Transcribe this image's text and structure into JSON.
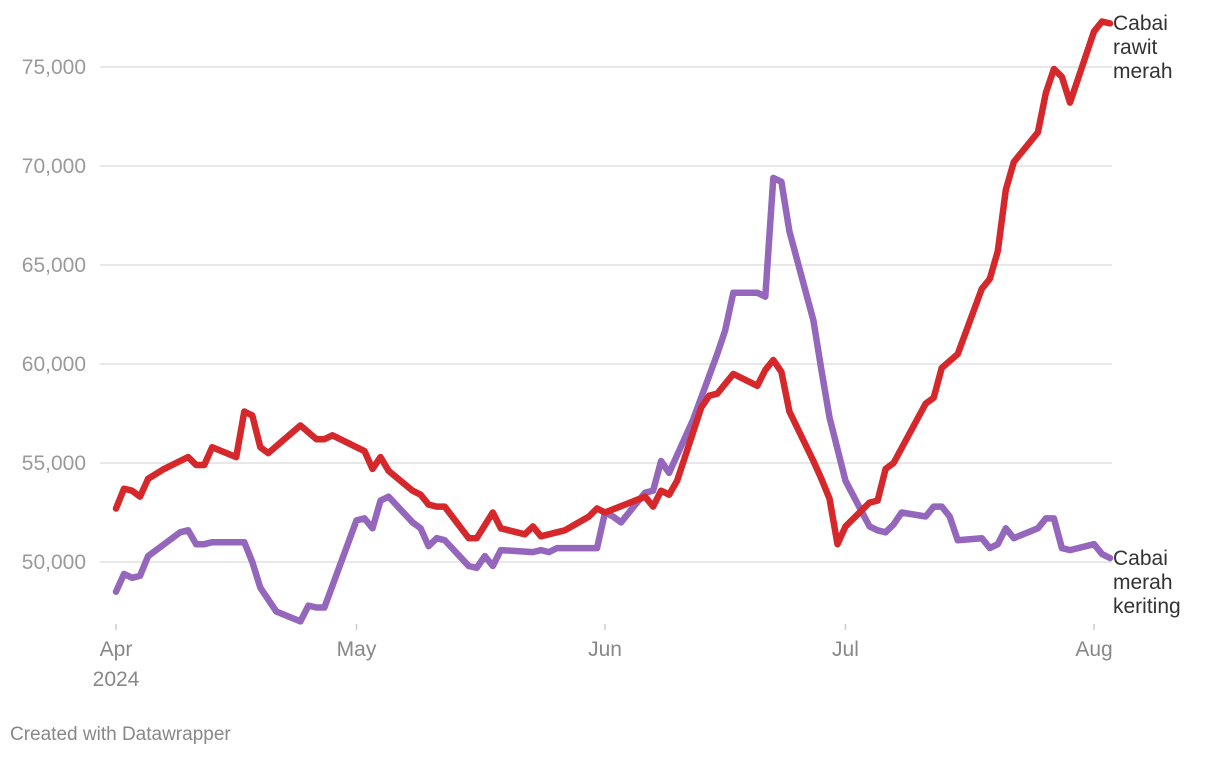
{
  "credit": "Created with Datawrapper",
  "chart_data": {
    "type": "line",
    "x_start": "2024-04-01",
    "x_end": "2024-08-01",
    "x_ticks": [
      {
        "label": "Apr",
        "sublabel": "2024",
        "date": "2024-04-01"
      },
      {
        "label": "May",
        "sublabel": "",
        "date": "2024-05-01"
      },
      {
        "label": "Jun",
        "sublabel": "",
        "date": "2024-06-01"
      },
      {
        "label": "Jul",
        "sublabel": "",
        "date": "2024-07-01"
      },
      {
        "label": "Aug",
        "sublabel": "",
        "date": "2024-08-01"
      }
    ],
    "y_ticks": [
      {
        "value": 50000,
        "label": "50,000"
      },
      {
        "value": 55000,
        "label": "55,000"
      },
      {
        "value": 60000,
        "label": "60,000"
      },
      {
        "value": 65000,
        "label": "65,000"
      },
      {
        "value": 70000,
        "label": "70,000"
      },
      {
        "value": 75000,
        "label": "75,000"
      }
    ],
    "ylim": [
      46500,
      77500
    ],
    "grid": true,
    "series": [
      {
        "name": "Cabai rawit merah",
        "label_lines": [
          "Cabai",
          "rawit",
          "merah"
        ],
        "color": "#d6272a",
        "points": [
          [
            "2024-04-01",
            52700
          ],
          [
            "2024-04-02",
            53700
          ],
          [
            "2024-04-03",
            53600
          ],
          [
            "2024-04-04",
            53300
          ],
          [
            "2024-04-05",
            54200
          ],
          [
            "2024-04-07",
            54700
          ],
          [
            "2024-04-09",
            55100
          ],
          [
            "2024-04-10",
            55300
          ],
          [
            "2024-04-11",
            54900
          ],
          [
            "2024-04-12",
            54900
          ],
          [
            "2024-04-13",
            55800
          ],
          [
            "2024-04-16",
            55300
          ],
          [
            "2024-04-17",
            57600
          ],
          [
            "2024-04-18",
            57400
          ],
          [
            "2024-04-19",
            55800
          ],
          [
            "2024-04-20",
            55500
          ],
          [
            "2024-04-24",
            56900
          ],
          [
            "2024-04-26",
            56200
          ],
          [
            "2024-04-27",
            56200
          ],
          [
            "2024-04-28",
            56400
          ],
          [
            "2024-05-01",
            55800
          ],
          [
            "2024-05-02",
            55600
          ],
          [
            "2024-05-03",
            54700
          ],
          [
            "2024-05-04",
            55300
          ],
          [
            "2024-05-05",
            54600
          ],
          [
            "2024-05-08",
            53600
          ],
          [
            "2024-05-09",
            53400
          ],
          [
            "2024-05-10",
            52900
          ],
          [
            "2024-05-11",
            52800
          ],
          [
            "2024-05-12",
            52800
          ],
          [
            "2024-05-15",
            51200
          ],
          [
            "2024-05-16",
            51200
          ],
          [
            "2024-05-18",
            52500
          ],
          [
            "2024-05-19",
            51700
          ],
          [
            "2024-05-22",
            51400
          ],
          [
            "2024-05-23",
            51800
          ],
          [
            "2024-05-24",
            51300
          ],
          [
            "2024-05-27",
            51600
          ],
          [
            "2024-05-30",
            52300
          ],
          [
            "2024-05-31",
            52700
          ],
          [
            "2024-06-01",
            52500
          ],
          [
            "2024-06-06",
            53300
          ],
          [
            "2024-06-07",
            52800
          ],
          [
            "2024-06-08",
            53600
          ],
          [
            "2024-06-09",
            53400
          ],
          [
            "2024-06-10",
            54100
          ],
          [
            "2024-06-13",
            57800
          ],
          [
            "2024-06-14",
            58400
          ],
          [
            "2024-06-15",
            58500
          ],
          [
            "2024-06-17",
            59500
          ],
          [
            "2024-06-20",
            58900
          ],
          [
            "2024-06-21",
            59700
          ],
          [
            "2024-06-22",
            60200
          ],
          [
            "2024-06-23",
            59600
          ],
          [
            "2024-06-24",
            57600
          ],
          [
            "2024-06-27",
            55100
          ],
          [
            "2024-06-28",
            54200
          ],
          [
            "2024-06-29",
            53200
          ],
          [
            "2024-06-30",
            50900
          ],
          [
            "2024-07-01",
            51800
          ],
          [
            "2024-07-04",
            53000
          ],
          [
            "2024-07-05",
            53100
          ],
          [
            "2024-07-06",
            54700
          ],
          [
            "2024-07-07",
            55000
          ],
          [
            "2024-07-11",
            58000
          ],
          [
            "2024-07-12",
            58300
          ],
          [
            "2024-07-13",
            59800
          ],
          [
            "2024-07-15",
            60500
          ],
          [
            "2024-07-18",
            63800
          ],
          [
            "2024-07-19",
            64300
          ],
          [
            "2024-07-20",
            65700
          ],
          [
            "2024-07-21",
            68800
          ],
          [
            "2024-07-22",
            70200
          ],
          [
            "2024-07-25",
            71700
          ],
          [
            "2024-07-26",
            73700
          ],
          [
            "2024-07-27",
            74900
          ],
          [
            "2024-07-28",
            74500
          ],
          [
            "2024-07-29",
            73200
          ],
          [
            "2024-07-30",
            74400
          ],
          [
            "2024-07-31",
            75600
          ],
          [
            "2024-08-01",
            76800
          ],
          [
            "2024-08-02",
            77300
          ],
          [
            "2024-08-03",
            77200
          ]
        ]
      },
      {
        "name": "Cabai merah keriting",
        "label_lines": [
          "Cabai",
          "merah",
          "keriting"
        ],
        "color": "#9467bd",
        "points": [
          [
            "2024-04-01",
            48500
          ],
          [
            "2024-04-02",
            49400
          ],
          [
            "2024-04-03",
            49200
          ],
          [
            "2024-04-04",
            49300
          ],
          [
            "2024-04-05",
            50300
          ],
          [
            "2024-04-09",
            51500
          ],
          [
            "2024-04-10",
            51600
          ],
          [
            "2024-04-11",
            50900
          ],
          [
            "2024-04-12",
            50900
          ],
          [
            "2024-04-13",
            51000
          ],
          [
            "2024-04-17",
            51000
          ],
          [
            "2024-04-18",
            50000
          ],
          [
            "2024-04-19",
            48700
          ],
          [
            "2024-04-21",
            47500
          ],
          [
            "2024-04-24",
            47000
          ],
          [
            "2024-04-25",
            47800
          ],
          [
            "2024-04-26",
            47700
          ],
          [
            "2024-04-27",
            47700
          ],
          [
            "2024-05-01",
            52100
          ],
          [
            "2024-05-02",
            52200
          ],
          [
            "2024-05-03",
            51700
          ],
          [
            "2024-05-04",
            53100
          ],
          [
            "2024-05-05",
            53300
          ],
          [
            "2024-05-08",
            52000
          ],
          [
            "2024-05-09",
            51700
          ],
          [
            "2024-05-10",
            50800
          ],
          [
            "2024-05-11",
            51200
          ],
          [
            "2024-05-12",
            51100
          ],
          [
            "2024-05-15",
            49800
          ],
          [
            "2024-05-16",
            49700
          ],
          [
            "2024-05-17",
            50300
          ],
          [
            "2024-05-18",
            49800
          ],
          [
            "2024-05-19",
            50600
          ],
          [
            "2024-05-23",
            50500
          ],
          [
            "2024-05-24",
            50600
          ],
          [
            "2024-05-25",
            50500
          ],
          [
            "2024-05-26",
            50700
          ],
          [
            "2024-05-31",
            50700
          ],
          [
            "2024-06-01",
            52500
          ],
          [
            "2024-06-02",
            52300
          ],
          [
            "2024-06-03",
            52000
          ],
          [
            "2024-06-04",
            52500
          ],
          [
            "2024-06-06",
            53500
          ],
          [
            "2024-06-07",
            53600
          ],
          [
            "2024-06-08",
            55100
          ],
          [
            "2024-06-09",
            54500
          ],
          [
            "2024-06-12",
            57200
          ],
          [
            "2024-06-15",
            60500
          ],
          [
            "2024-06-16",
            61700
          ],
          [
            "2024-06-17",
            63600
          ],
          [
            "2024-06-20",
            63600
          ],
          [
            "2024-06-21",
            63400
          ],
          [
            "2024-06-22",
            69400
          ],
          [
            "2024-06-23",
            69200
          ],
          [
            "2024-06-24",
            66700
          ],
          [
            "2024-06-27",
            62200
          ],
          [
            "2024-06-28",
            59700
          ],
          [
            "2024-06-29",
            57300
          ],
          [
            "2024-06-30",
            55700
          ],
          [
            "2024-07-01",
            54100
          ],
          [
            "2024-07-04",
            51800
          ],
          [
            "2024-07-05",
            51600
          ],
          [
            "2024-07-06",
            51500
          ],
          [
            "2024-07-07",
            51900
          ],
          [
            "2024-07-08",
            52500
          ],
          [
            "2024-07-11",
            52300
          ],
          [
            "2024-07-12",
            52800
          ],
          [
            "2024-07-13",
            52800
          ],
          [
            "2024-07-14",
            52300
          ],
          [
            "2024-07-15",
            51100
          ],
          [
            "2024-07-18",
            51200
          ],
          [
            "2024-07-19",
            50700
          ],
          [
            "2024-07-20",
            50900
          ],
          [
            "2024-07-21",
            51700
          ],
          [
            "2024-07-22",
            51200
          ],
          [
            "2024-07-25",
            51700
          ],
          [
            "2024-07-26",
            52200
          ],
          [
            "2024-07-27",
            52200
          ],
          [
            "2024-07-28",
            50700
          ],
          [
            "2024-07-29",
            50600
          ],
          [
            "2024-08-01",
            50900
          ],
          [
            "2024-08-02",
            50400
          ],
          [
            "2024-08-03",
            50200
          ]
        ]
      }
    ]
  }
}
